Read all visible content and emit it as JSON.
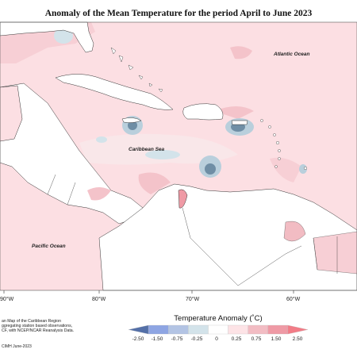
{
  "title": "Anomaly of the Mean Temperature for the period April to June 2023",
  "labels": {
    "atlantic": "Atlantic Ocean",
    "caribbean": "Caribbean Sea",
    "pacific": "Pacific Ocean"
  },
  "longitude_ticks": [
    "90°W",
    "80°W",
    "70°W",
    "60°W"
  ],
  "note_lines": [
    "an Map of the Caribbean Region",
    "ggregating station based observations,",
    "CF, with NCEP/NCAR Reanalysis Data."
  ],
  "credit": "CIMH June-2023",
  "legend": {
    "title": "Temperature Anomaly (˚C)",
    "ticks": [
      "-2.50",
      "-1.50",
      "-0.75",
      "-0.25",
      "0",
      "0.25",
      "0.75",
      "1.50",
      "2.50"
    ],
    "colors": [
      "#5470a8",
      "#8ea5e3",
      "#b3c4e4",
      "#d3e3ea",
      "#ffffff",
      "#fde3e6",
      "#f2bcc3",
      "#ef9aa5",
      "#f27c87"
    ]
  },
  "colors": {
    "ocean_warm": "#fcdfe3",
    "warm_medium": "#f2bcc3",
    "cool_light": "#d3e3ea",
    "cool_medium": "#9fb8c8",
    "cool_dark": "#6f8ea5",
    "land": "#ffffff"
  }
}
